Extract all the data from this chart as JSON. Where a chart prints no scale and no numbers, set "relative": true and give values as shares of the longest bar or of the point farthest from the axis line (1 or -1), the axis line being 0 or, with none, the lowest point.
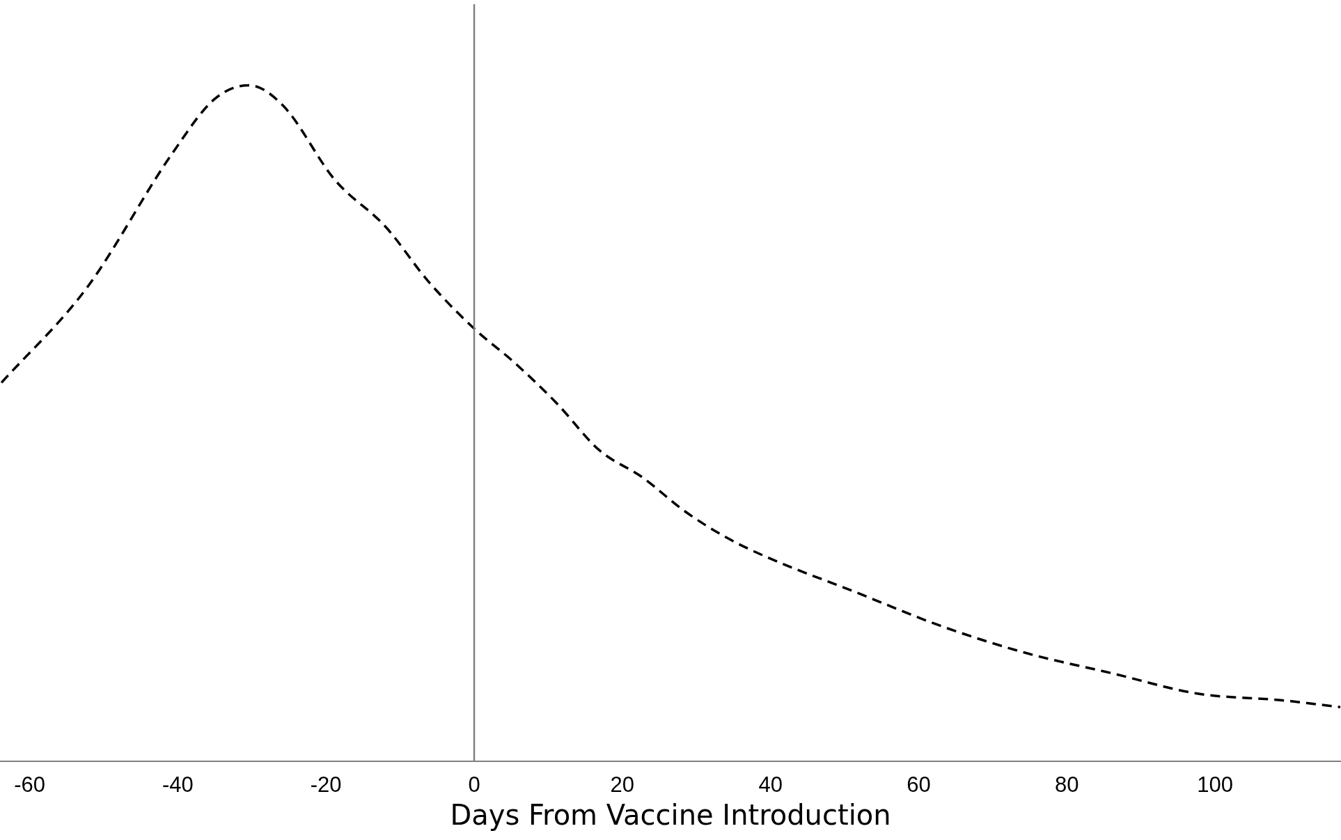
{
  "chart_data": {
    "type": "line",
    "xlabel": "Days From Vaccine Introduction",
    "relative": true,
    "line_style": "dashed",
    "marker": "none",
    "grid": false,
    "legend": false,
    "xlim": [
      -64,
      117
    ],
    "xticks": [
      -60,
      -40,
      -20,
      0,
      20,
      40,
      60,
      80,
      100
    ],
    "ref_lines": [
      {
        "axis": "x",
        "value": 0,
        "color": "#808080"
      }
    ],
    "series": [
      {
        "color": "#000000",
        "x": [
          -63.8,
          -52.3,
          -40.7,
          -35.0,
          -30.4,
          -25.8,
          -18.8,
          -11.9,
          -6.2,
          0,
          5.4,
          11.1,
          16.9,
          22.7,
          28.4,
          34.2,
          39.9,
          51.5,
          63.0,
          74.5,
          86.1,
          97.6,
          109.1,
          116.9
        ],
        "values": [
          0.56,
          0.7,
          0.9,
          0.98,
          1.0,
          0.97,
          0.86,
          0.79,
          0.71,
          0.64,
          0.59,
          0.53,
          0.46,
          0.42,
          0.37,
          0.33,
          0.3,
          0.25,
          0.2,
          0.16,
          0.13,
          0.1,
          0.09,
          0.08
        ]
      }
    ]
  }
}
